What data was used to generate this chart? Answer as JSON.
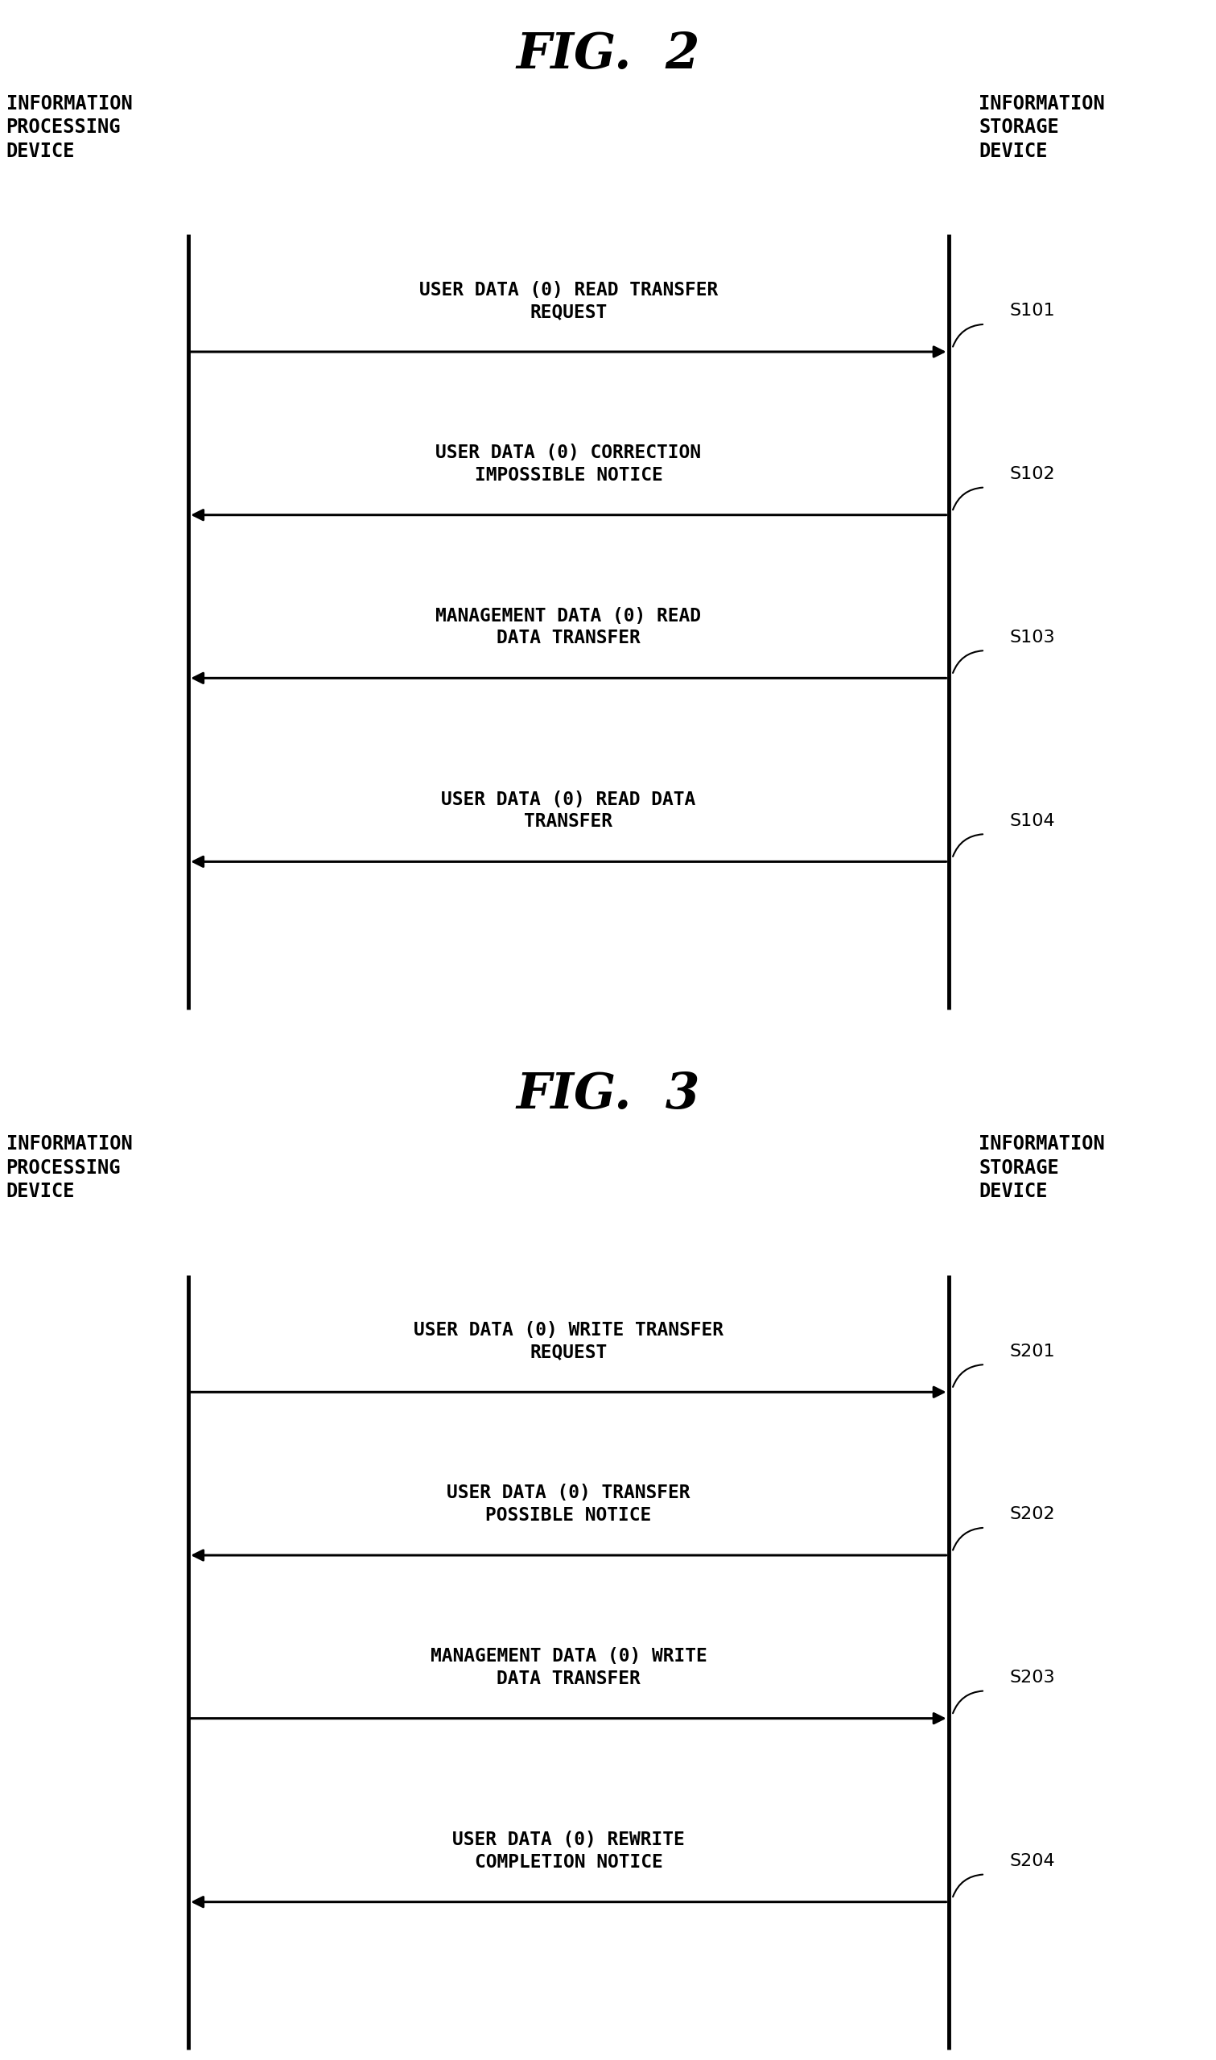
{
  "fig2": {
    "title": "FIG.  2",
    "left_label": "INFORMATION\nPROCESSING\nDEVICE",
    "right_label": "INFORMATION\nSTORAGE\nDEVICE",
    "arrows": [
      {
        "direction": "right",
        "label": "USER DATA (0) READ TRANSFER\nREQUEST",
        "step": "S101"
      },
      {
        "direction": "left",
        "label": "USER DATA (0) CORRECTION\nIMPOSSIBLE NOTICE",
        "step": "S102"
      },
      {
        "direction": "left",
        "label": "MANAGEMENT DATA (0) READ\nDATA TRANSFER",
        "step": "S103"
      },
      {
        "direction": "left",
        "label": "USER DATA (0) READ DATA\nTRANSFER",
        "step": "S104"
      }
    ]
  },
  "fig3": {
    "title": "FIG.  3",
    "left_label": "INFORMATION\nPROCESSING\nDEVICE",
    "right_label": "INFORMATION\nSTORAGE\nDEVICE",
    "arrows": [
      {
        "direction": "right",
        "label": "USER DATA (0) WRITE TRANSFER\nREQUEST",
        "step": "S201"
      },
      {
        "direction": "left",
        "label": "USER DATA (0) TRANSFER\nPOSSIBLE NOTICE",
        "step": "S202"
      },
      {
        "direction": "right",
        "label": "MANAGEMENT DATA (0) WRITE\nDATA TRANSFER",
        "step": "S203"
      },
      {
        "direction": "left",
        "label": "USER DATA (0) REWRITE\nCOMPLETION NOTICE",
        "step": "S204"
      }
    ]
  },
  "bg_color": "#ffffff",
  "line_color": "#000000",
  "text_color": "#000000",
  "arrow_color": "#000000"
}
